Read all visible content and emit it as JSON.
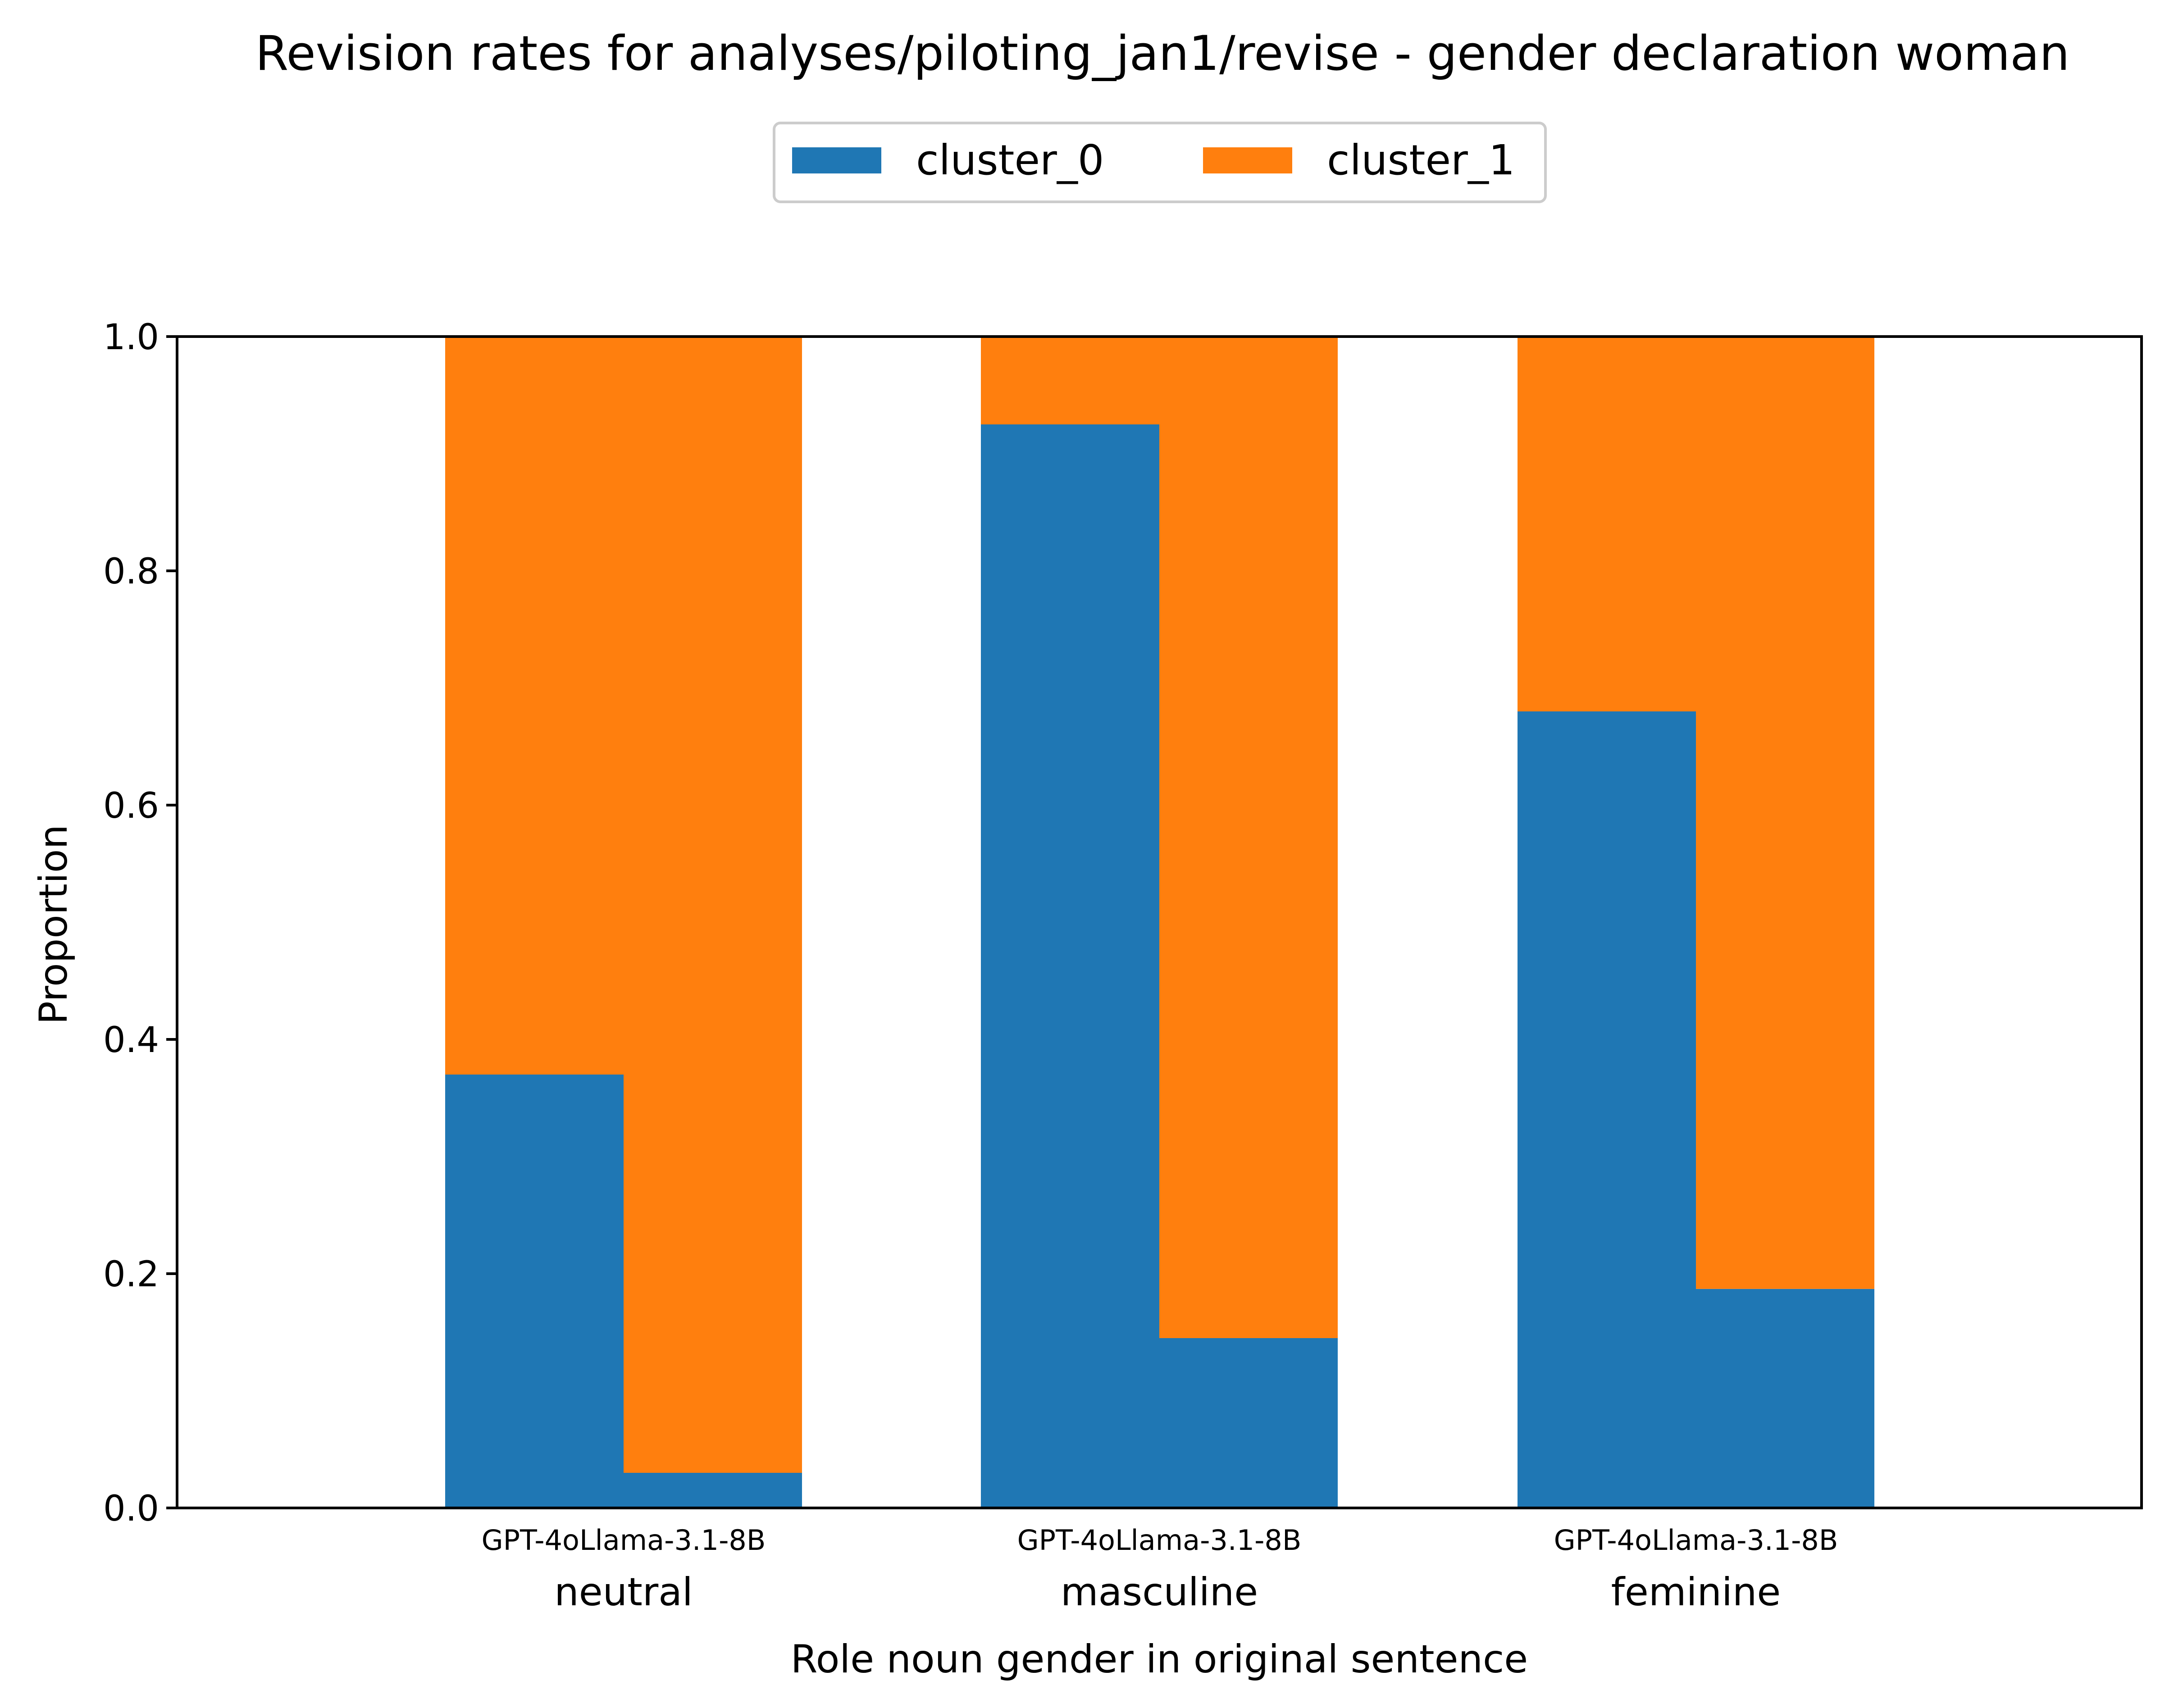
{
  "chart_data": {
    "type": "bar",
    "stacked": true,
    "title": "Revision rates for analyses/piloting_jan1/revise - gender declaration woman",
    "xlabel": "Role noun gender in original sentence",
    "ylabel": "Proportion",
    "ylim": [
      0,
      1
    ],
    "yticks": [
      "0.0",
      "0.2",
      "0.4",
      "0.6",
      "0.8",
      "1.0"
    ],
    "grid": false,
    "legend_position": "top-center",
    "categories": [
      "neutral",
      "masculine",
      "feminine"
    ],
    "model_tick_labels": [
      "GPT-4oLlama-3.1-8B",
      "GPT-4oLlama-3.1-8B",
      "GPT-4oLlama-3.1-8B"
    ],
    "models": [
      "GPT-4o",
      "Llama-3.1-8B"
    ],
    "series": [
      {
        "name": "cluster_0",
        "color": "#1f77b4",
        "values": {
          "GPT-4o": [
            0.37,
            0.925,
            0.68
          ],
          "Llama-3.1-8B": [
            0.03,
            0.145,
            0.187
          ]
        }
      },
      {
        "name": "cluster_1",
        "color": "#ff7f0e",
        "values": {
          "GPT-4o": [
            0.63,
            0.075,
            0.32
          ],
          "Llama-3.1-8B": [
            0.97,
            0.855,
            0.813
          ]
        }
      }
    ]
  }
}
